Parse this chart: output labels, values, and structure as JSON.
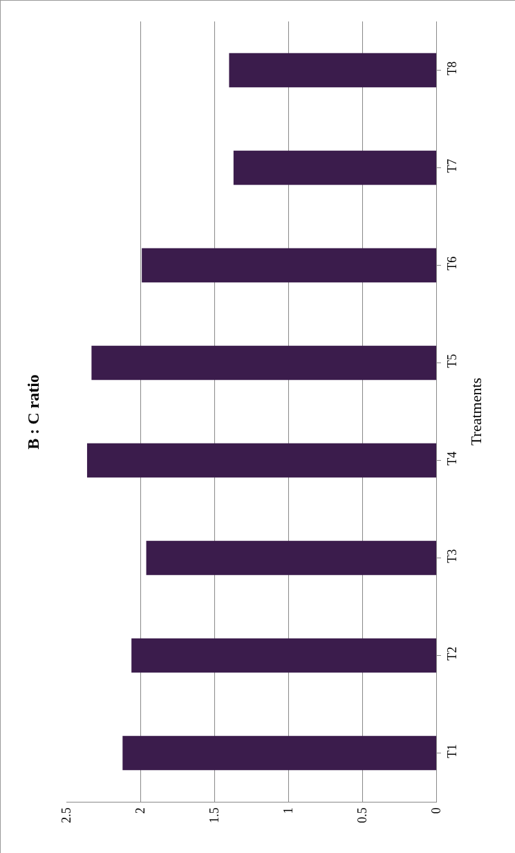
{
  "chart_data": {
    "type": "bar",
    "orientation": "horizontal",
    "title": "B : C ratio",
    "ylabel": "Treatments",
    "categories": [
      "T8",
      "T7",
      "T6",
      "T5",
      "T4",
      "T3",
      "T2",
      "T1"
    ],
    "values": [
      1.4,
      1.37,
      1.99,
      2.33,
      2.36,
      1.96,
      2.06,
      2.12
    ],
    "color": "#3b1c4c",
    "xlim": [
      2.5,
      0
    ],
    "xticks": [
      0,
      0.5,
      1,
      1.5,
      2,
      2.5
    ],
    "grid": "x"
  }
}
